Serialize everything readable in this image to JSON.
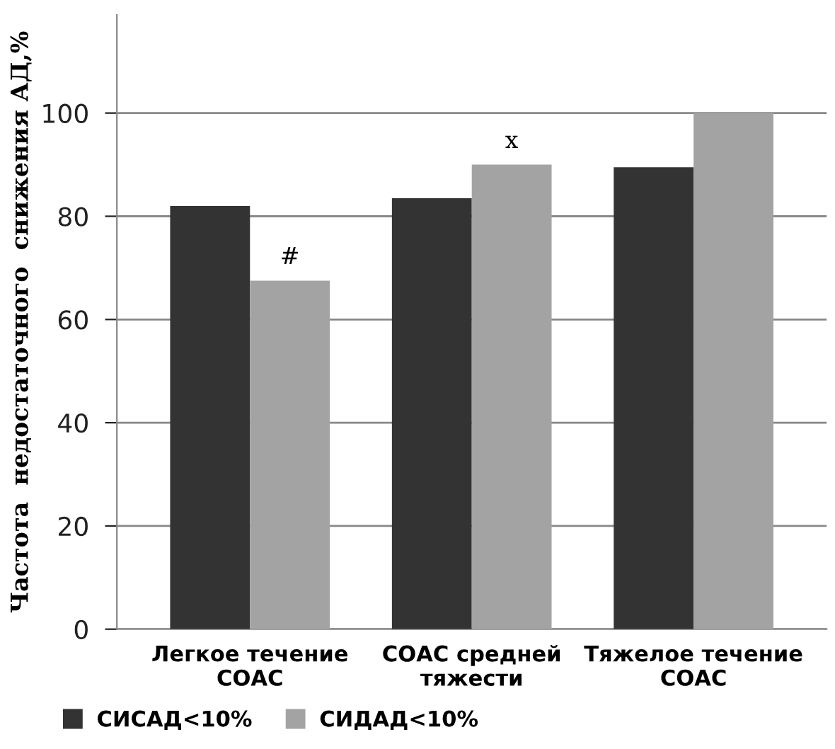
{
  "chart_data": {
    "type": "bar",
    "ylabel": "Частота  недостаточного  снижения АД,%",
    "categories": [
      "Легкое течение\nСОАС",
      "СОАС средней\nтяжести",
      "Тяжелое течение\nСОАС"
    ],
    "series": [
      {
        "name": "СИСАД<10%",
        "color": "#333333",
        "values": [
          82,
          83.5,
          89.5
        ]
      },
      {
        "name": "СИДАД<10%",
        "color": "#a3a3a3",
        "values": [
          67.5,
          90,
          100
        ]
      }
    ],
    "ylim": [
      0,
      119
    ],
    "yticks": [
      0,
      20,
      40,
      60,
      80,
      100
    ],
    "grid": "y",
    "legend": "bottom left",
    "annotations": [
      {
        "text": "#",
        "x": "Легкое течение\nСОАС",
        "y": 67.5
      },
      {
        "text": "x",
        "x": "СОАС средней\nтяжести",
        "y": 90
      }
    ]
  }
}
